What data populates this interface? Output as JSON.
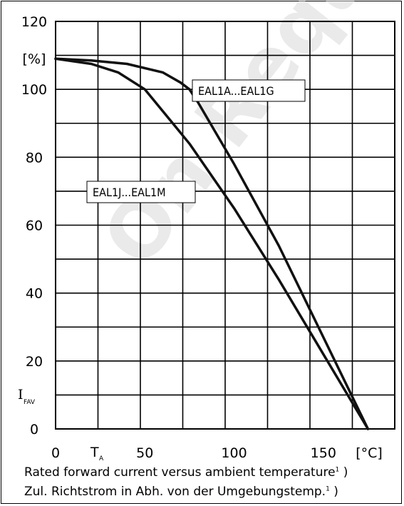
{
  "chart_data": {
    "type": "line",
    "title": "",
    "ylabel_unit": "[%]",
    "ylabel_symbol": "I",
    "ylabel_subscript": "FAV",
    "xlabel_symbol": "T",
    "xlabel_subscript": "A",
    "xlabel_unit": "[°C]",
    "xlim": [
      0,
      190
    ],
    "ylim": [
      0,
      120
    ],
    "x_ticks": [
      0,
      50,
      100,
      150
    ],
    "y_ticks": [
      0,
      20,
      40,
      60,
      80,
      100,
      120
    ],
    "grid": true,
    "series": [
      {
        "name": "EAL1A...EAL1G",
        "x": [
          0,
          20,
          40,
          60,
          70,
          75,
          80,
          100,
          125,
          150,
          175
        ],
        "y": [
          109,
          108.5,
          107.5,
          105,
          102,
          100,
          96,
          78,
          54,
          27,
          0
        ]
      },
      {
        "name": "EAL1J...EAL1M",
        "x": [
          0,
          20,
          35,
          50,
          75,
          100,
          125,
          150,
          175
        ],
        "y": [
          109,
          107.5,
          105,
          100,
          84,
          65,
          44,
          22,
          0
        ]
      }
    ]
  },
  "caption": {
    "line1": "Rated forward current versus ambient temperature",
    "line1_footnote": "1",
    "line2": "Zul. Richtstrom in Abh. von der Umgebungstemp.",
    "line2_footnote": "1",
    "close": ")"
  },
  "watermark": "On Request"
}
